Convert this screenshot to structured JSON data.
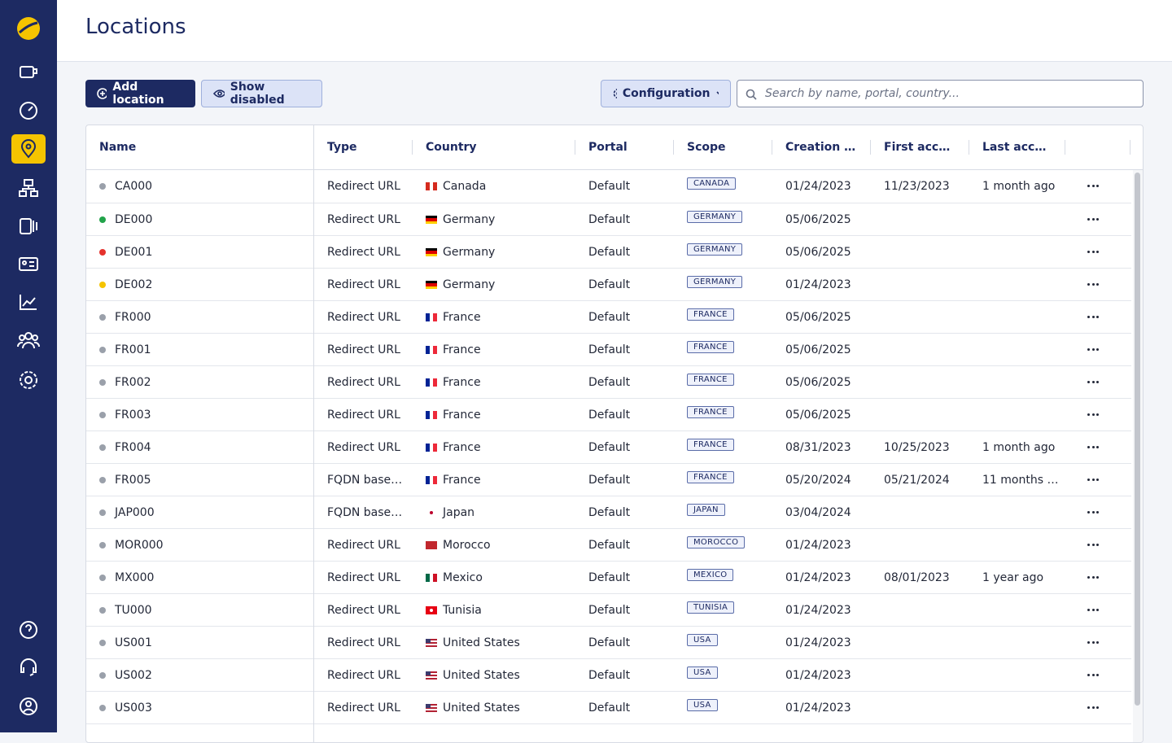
{
  "header": {
    "title": "Locations"
  },
  "toolbar": {
    "add": "Add location",
    "show_disabled": "Show disabled",
    "configuration": "Configuration",
    "search_placeholder": "Search by name, portal, country..."
  },
  "table": {
    "columns": [
      "Name",
      "Type",
      "Country",
      "Portal",
      "Scope",
      "Creation …",
      "First acc…",
      "Last acc…"
    ],
    "rows": [
      {
        "name": "CA000",
        "dot": "#9aa0aa",
        "type": "Redirect URL",
        "country": "Canada",
        "flag": {
          "dir": "v",
          "colors": [
            "#d52b1e",
            "#ffffff",
            "#d52b1e"
          ]
        },
        "portal": "Default",
        "scope": "CANADA",
        "created": "01/24/2023",
        "first": "11/23/2023",
        "last": "1 month ago"
      },
      {
        "name": "DE000",
        "dot": "#22a34a",
        "type": "Redirect URL",
        "country": "Germany",
        "flag": {
          "dir": "h",
          "colors": [
            "#000000",
            "#dd0000",
            "#ffce00"
          ]
        },
        "portal": "Default",
        "scope": "GERMANY",
        "created": "05/06/2025",
        "first": null,
        "last": null
      },
      {
        "name": "DE001",
        "dot": "#e5322d",
        "type": "Redirect URL",
        "country": "Germany",
        "flag": {
          "dir": "h",
          "colors": [
            "#000000",
            "#dd0000",
            "#ffce00"
          ]
        },
        "portal": "Default",
        "scope": "GERMANY",
        "created": "05/06/2025",
        "first": null,
        "last": null
      },
      {
        "name": "DE002",
        "dot": "#f5c400",
        "type": "Redirect URL",
        "country": "Germany",
        "flag": {
          "dir": "h",
          "colors": [
            "#000000",
            "#dd0000",
            "#ffce00"
          ]
        },
        "portal": "Default",
        "scope": "GERMANY",
        "created": "01/24/2023",
        "first": null,
        "last": null
      },
      {
        "name": "FR000",
        "dot": "#9aa0aa",
        "type": "Redirect URL",
        "country": "France",
        "flag": {
          "dir": "v",
          "colors": [
            "#002395",
            "#ffffff",
            "#ed2939"
          ]
        },
        "portal": "Default",
        "scope": "FRANCE",
        "created": "05/06/2025",
        "first": null,
        "last": null
      },
      {
        "name": "FR001",
        "dot": "#9aa0aa",
        "type": "Redirect URL",
        "country": "France",
        "flag": {
          "dir": "v",
          "colors": [
            "#002395",
            "#ffffff",
            "#ed2939"
          ]
        },
        "portal": "Default",
        "scope": "FRANCE",
        "created": "05/06/2025",
        "first": null,
        "last": null
      },
      {
        "name": "FR002",
        "dot": "#9aa0aa",
        "type": "Redirect URL",
        "country": "France",
        "flag": {
          "dir": "v",
          "colors": [
            "#002395",
            "#ffffff",
            "#ed2939"
          ]
        },
        "portal": "Default",
        "scope": "FRANCE",
        "created": "05/06/2025",
        "first": null,
        "last": null
      },
      {
        "name": "FR003",
        "dot": "#9aa0aa",
        "type": "Redirect URL",
        "country": "France",
        "flag": {
          "dir": "v",
          "colors": [
            "#002395",
            "#ffffff",
            "#ed2939"
          ]
        },
        "portal": "Default",
        "scope": "FRANCE",
        "created": "05/06/2025",
        "first": null,
        "last": null
      },
      {
        "name": "FR004",
        "dot": "#9aa0aa",
        "type": "Redirect URL",
        "country": "France",
        "flag": {
          "dir": "v",
          "colors": [
            "#002395",
            "#ffffff",
            "#ed2939"
          ]
        },
        "portal": "Default",
        "scope": "FRANCE",
        "created": "08/31/2023",
        "first": "10/25/2023",
        "last": "1 month ago"
      },
      {
        "name": "FR005",
        "dot": "#9aa0aa",
        "type": "FQDN base…",
        "country": "France",
        "flag": {
          "dir": "v",
          "colors": [
            "#002395",
            "#ffffff",
            "#ed2939"
          ]
        },
        "portal": "Default",
        "scope": "FRANCE",
        "created": "05/20/2024",
        "first": "05/21/2024",
        "last": "11 months …"
      },
      {
        "name": "JAP000",
        "dot": "#9aa0aa",
        "type": "FQDN base…",
        "country": "Japan",
        "flag": {
          "dir": "h",
          "colors": [
            "#ffffff"
          ],
          "spot": "#bc002d"
        },
        "portal": "Default",
        "scope": "JAPAN",
        "created": "03/04/2024",
        "first": null,
        "last": null
      },
      {
        "name": "MOR000",
        "dot": "#9aa0aa",
        "type": "Redirect URL",
        "country": "Morocco",
        "flag": {
          "dir": "h",
          "colors": [
            "#c1272d"
          ]
        },
        "portal": "Default",
        "scope": "MOROCCO",
        "created": "01/24/2023",
        "first": null,
        "last": null
      },
      {
        "name": "MX000",
        "dot": "#9aa0aa",
        "type": "Redirect URL",
        "country": "Mexico",
        "flag": {
          "dir": "v",
          "colors": [
            "#006847",
            "#ffffff",
            "#ce1126"
          ]
        },
        "portal": "Default",
        "scope": "MEXICO",
        "created": "01/24/2023",
        "first": "08/01/2023",
        "last": "1 year ago"
      },
      {
        "name": "TU000",
        "dot": "#9aa0aa",
        "type": "Redirect URL",
        "country": "Tunisia",
        "flag": {
          "dir": "h",
          "colors": [
            "#e70013"
          ],
          "spot": "#ffffff"
        },
        "portal": "Default",
        "scope": "TUNISIA",
        "created": "01/24/2023",
        "first": null,
        "last": null
      },
      {
        "name": "US001",
        "dot": "#9aa0aa",
        "type": "Redirect URL",
        "country": "United States",
        "flag": {
          "dir": "h",
          "colors": [
            "#b22234",
            "#ffffff",
            "#b22234",
            "#ffffff",
            "#b22234"
          ],
          "canton": "#3c3b6e"
        },
        "portal": "Default",
        "scope": "USA",
        "created": "01/24/2023",
        "first": null,
        "last": null
      },
      {
        "name": "US002",
        "dot": "#9aa0aa",
        "type": "Redirect URL",
        "country": "United States",
        "flag": {
          "dir": "h",
          "colors": [
            "#b22234",
            "#ffffff",
            "#b22234",
            "#ffffff",
            "#b22234"
          ],
          "canton": "#3c3b6e"
        },
        "portal": "Default",
        "scope": "USA",
        "created": "01/24/2023",
        "first": null,
        "last": null
      },
      {
        "name": "US003",
        "dot": "#9aa0aa",
        "type": "Redirect URL",
        "country": "United States",
        "flag": {
          "dir": "h",
          "colors": [
            "#b22234",
            "#ffffff",
            "#b22234",
            "#ffffff",
            "#b22234"
          ],
          "canton": "#3c3b6e"
        },
        "portal": "Default",
        "scope": "USA",
        "created": "01/24/2023",
        "first": null,
        "last": null
      }
    ]
  }
}
